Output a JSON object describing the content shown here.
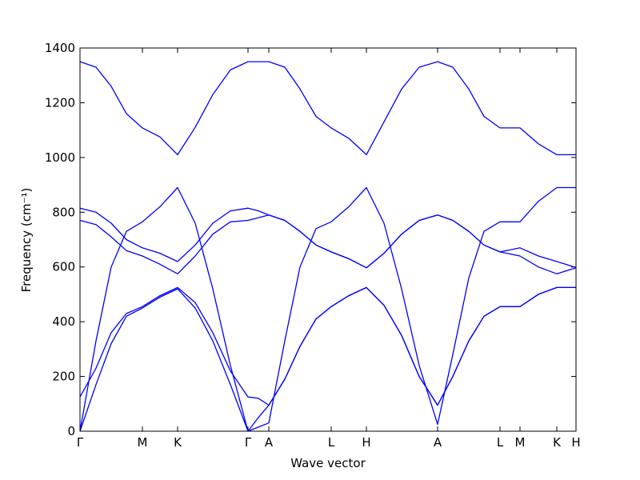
{
  "chart_data": {
    "type": "line",
    "x_label": "Wave vector",
    "y_label": "Frequency (cm⁻¹)",
    "x": [
      0,
      20,
      39,
      58,
      78,
      100,
      122,
      144,
      166,
      188,
      210,
      223,
      236,
      256,
      275,
      295,
      314,
      336,
      358,
      380,
      402,
      424,
      447,
      466,
      486,
      505,
      525,
      550,
      573,
      596,
      620
    ],
    "xlim": [
      0,
      620
    ],
    "xticks": [
      {
        "value": 0,
        "label": "Γ"
      },
      {
        "value": 78,
        "label": "M"
      },
      {
        "value": 122,
        "label": "K"
      },
      {
        "value": 210,
        "label": "Γ"
      },
      {
        "value": 236,
        "label": "A"
      },
      {
        "value": 314,
        "label": "L"
      },
      {
        "value": 358,
        "label": "H"
      },
      {
        "value": 447,
        "label": "A"
      },
      {
        "value": 525,
        "label": "L"
      },
      {
        "value": 550,
        "label": "M"
      },
      {
        "value": 596,
        "label": "K"
      },
      {
        "value": 620,
        "label": "H"
      }
    ],
    "ylim": [
      0,
      1400
    ],
    "yticks": [
      0,
      200,
      400,
      600,
      800,
      1000,
      1200,
      1400
    ],
    "series": [
      {
        "color": "#0000ff",
        "values": [
          1350,
          1330,
          1260,
          1160,
          1108,
          1075,
          1010,
          1110,
          1230,
          1320,
          1350,
          1350,
          1350,
          1330,
          1250,
          1150,
          1108,
          1070,
          1010,
          1130,
          1250,
          1330,
          1350,
          1330,
          1250,
          1150,
          1108,
          1108,
          1050,
          1010,
          1010
        ]
      },
      {
        "color": "#0000ff",
        "values": [
          815,
          800,
          760,
          700,
          670,
          650,
          620,
          680,
          760,
          805,
          815,
          805,
          790,
          770,
          730,
          680,
          655,
          630,
          597,
          650,
          720,
          770,
          790,
          770,
          730,
          680,
          655,
          670,
          640,
          620,
          598
        ]
      },
      {
        "color": "#0000ff",
        "values": [
          770,
          755,
          710,
          660,
          640,
          610,
          575,
          640,
          720,
          765,
          770,
          780,
          790,
          770,
          730,
          680,
          655,
          630,
          597,
          650,
          720,
          770,
          790,
          770,
          730,
          680,
          655,
          640,
          600,
          575,
          597
        ]
      },
      {
        "color": "#0000ff",
        "values": [
          0,
          330,
          600,
          730,
          765,
          820,
          890,
          760,
          520,
          240,
          0,
          15,
          30,
          330,
          600,
          740,
          765,
          820,
          890,
          760,
          520,
          240,
          25,
          280,
          560,
          730,
          765,
          765,
          840,
          890,
          890
        ]
      },
      {
        "color": "#0000ff",
        "values": [
          125,
          230,
          360,
          430,
          455,
          495,
          525,
          470,
          360,
          220,
          125,
          120,
          95,
          190,
          310,
          410,
          455,
          495,
          525,
          460,
          350,
          200,
          95,
          200,
          330,
          420,
          455,
          455,
          500,
          525,
          525
        ]
      },
      {
        "color": "#0000ff",
        "values": [
          0,
          170,
          320,
          420,
          450,
          490,
          520,
          450,
          330,
          170,
          0,
          50,
          95,
          190,
          310,
          410,
          455,
          495,
          525,
          460,
          350,
          200,
          95,
          200,
          330,
          420,
          455,
          455,
          500,
          525,
          525
        ]
      }
    ]
  }
}
